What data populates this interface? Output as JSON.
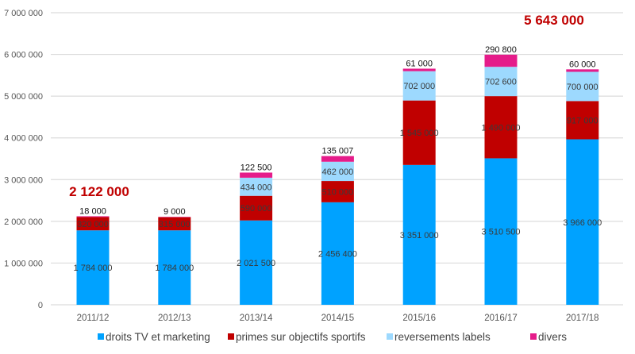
{
  "chart_data": {
    "type": "bar",
    "stacked": true,
    "title": "",
    "xlabel": "",
    "ylabel": "",
    "ylim": [
      0,
      7000000
    ],
    "yticks": [
      0,
      1000000,
      2000000,
      3000000,
      4000000,
      5000000,
      6000000,
      7000000
    ],
    "ytick_labels": [
      "0",
      "1 000 000",
      "2 000 000",
      "3 000 000",
      "4 000 000",
      "5 000 000",
      "6 000 000",
      "7 000 000"
    ],
    "grid": true,
    "legend_position": "bottom",
    "categories": [
      "2011/12",
      "2012/13",
      "2013/14",
      "2014/15",
      "2015/16",
      "2016/17",
      "2017/18"
    ],
    "series": [
      {
        "name": "droits TV et marketing",
        "color": "#00a2ff",
        "values": [
          1784000,
          1784000,
          2021500,
          2456400,
          3351000,
          3510500,
          3966000
        ],
        "labels": [
          "1 784 000",
          "1 784 000",
          "2 021 500",
          "2 456 400",
          "3 351 000",
          "3 510 500",
          "3 966 000"
        ]
      },
      {
        "name": "primes sur objectifs sportifs",
        "color": "#c00000",
        "values": [
          320000,
          315000,
          590000,
          510000,
          1545000,
          1490000,
          917000
        ],
        "labels": [
          "320 000",
          "315 000",
          "590 000",
          "510 000",
          "1 545 000",
          "1 490 000",
          "917 000"
        ]
      },
      {
        "name": "reversements labels",
        "color": "#9dd9fe",
        "values": [
          0,
          0,
          434000,
          462000,
          702000,
          702600,
          700000
        ],
        "labels": [
          "",
          "",
          "434 000",
          "462 000",
          "702 000",
          "702 600",
          "700 000"
        ]
      },
      {
        "name": "divers",
        "color": "#e51c8a",
        "values": [
          18000,
          9000,
          122500,
          135007,
          61000,
          290800,
          60000
        ],
        "labels": [
          "18 000",
          "9 000",
          "122 500",
          "135 007",
          "61 000",
          "290 800",
          "60 000"
        ]
      }
    ],
    "annotations": [
      {
        "category": "2011/12",
        "text": "2 122 000",
        "color": "#c00000"
      },
      {
        "category": "2017/18",
        "text": "5 643 000",
        "color": "#c00000"
      }
    ]
  }
}
